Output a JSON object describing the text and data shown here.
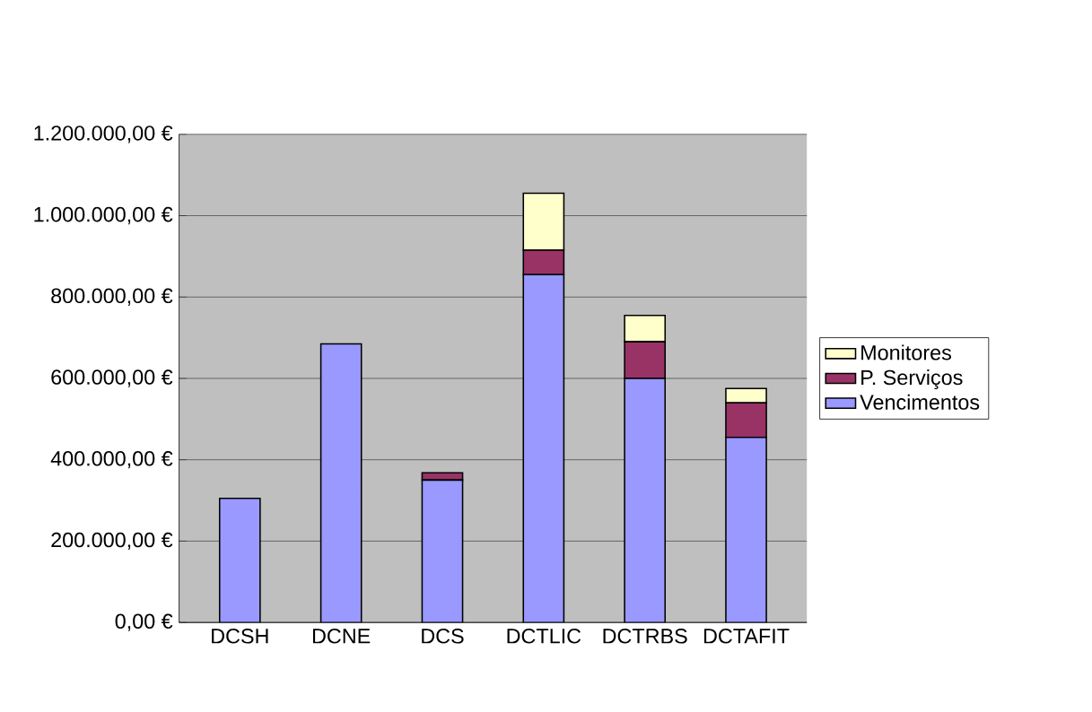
{
  "chart_data": {
    "type": "bar",
    "stacked": true,
    "categories": [
      "DCSH",
      "DCNE",
      "DCS",
      "DCTLIC",
      "DCTRBS",
      "DCTAFIT"
    ],
    "series": [
      {
        "name": "Vencimentos",
        "color": "#9999ff",
        "values": [
          305000,
          685000,
          350000,
          855000,
          600000,
          455000
        ]
      },
      {
        "name": "P. Serviços",
        "color": "#993366",
        "values": [
          null,
          null,
          18000,
          60000,
          90000,
          85000
        ]
      },
      {
        "name": "Monitores",
        "color": "#ffffcc",
        "values": [
          null,
          null,
          null,
          140000,
          65000,
          35000
        ]
      }
    ],
    "ylim": [
      0,
      1200000
    ],
    "yticks": [
      {
        "value": 0,
        "label": "0,00 €"
      },
      {
        "value": 200000,
        "label": "200.000,00 €"
      },
      {
        "value": 400000,
        "label": "400.000,00 €"
      },
      {
        "value": 600000,
        "label": "600.000,00 €"
      },
      {
        "value": 800000,
        "label": "800.000,00 €"
      },
      {
        "value": 1000000,
        "label": "1.000.000,00 €"
      },
      {
        "value": 1200000,
        "label": "1.200.000,00 €"
      }
    ],
    "grid": "y",
    "legend": "right"
  }
}
